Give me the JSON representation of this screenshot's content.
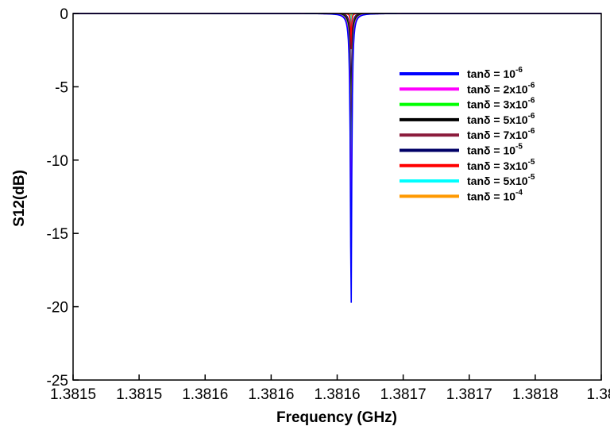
{
  "chart_data": {
    "type": "line",
    "title": "",
    "xlabel": "Frequency (GHz)",
    "ylabel": "S12(dB)",
    "x_tick_labels": [
      "1.3815",
      "1.3815",
      "1.3816",
      "1.3816",
      "1.3816",
      "1.3817",
      "1.3817",
      "1.3818",
      "1.38"
    ],
    "y_tick_labels": [
      "0",
      "-5",
      "-10",
      "-15",
      "-20",
      "-25"
    ],
    "y_ticks": [
      0,
      -5,
      -10,
      -15,
      -20,
      -25
    ],
    "xlim": [
      1.3815,
      1.3818
    ],
    "ylim": [
      -25,
      0
    ],
    "resonance_ghz": 1.3816579,
    "grid": false,
    "legend_position": "right",
    "series": [
      {
        "name": "tanδ = 10^-6",
        "label_base": "tanδ = 10",
        "label_sup": "-6",
        "color": "#0000ff",
        "min_db": -21.0
      },
      {
        "name": "tanδ = 2x10^-6",
        "label_base": "tanδ = 2x10",
        "label_sup": "-6",
        "color": "#ff00ff",
        "min_db": -16.5
      },
      {
        "name": "tanδ = 3x10^-6",
        "label_base": "tanδ = 3x10",
        "label_sup": "-6",
        "color": "#00ff00",
        "min_db": -13.9
      },
      {
        "name": "tanδ = 5x10^-6",
        "label_base": "tanδ = 5x10",
        "label_sup": "-6",
        "color": "#000000",
        "min_db": -10.6
      },
      {
        "name": "tanδ = 7x10^-6",
        "label_base": "tanδ = 7x10",
        "label_sup": "-6",
        "color": "#8b1c3c",
        "min_db": -8.7
      },
      {
        "name": "tanδ = 10^-5",
        "label_base": "tanδ = 10",
        "label_sup": "-5",
        "color": "#000066",
        "min_db": -6.9
      },
      {
        "name": "tanδ = 3x10^-5",
        "label_base": "tanδ = 3x10",
        "label_sup": "-5",
        "color": "#ff0000",
        "min_db": -2.9
      },
      {
        "name": "tanδ = 5x10^-5",
        "label_base": "tanδ = 5x10",
        "label_sup": "-5",
        "color": "#00ffff",
        "min_db": -1.9
      },
      {
        "name": "tanδ = 10^-4",
        "label_base": "tanδ = 10",
        "label_sup": "-4",
        "color": "#ff9900",
        "min_db": -1.0
      }
    ]
  }
}
